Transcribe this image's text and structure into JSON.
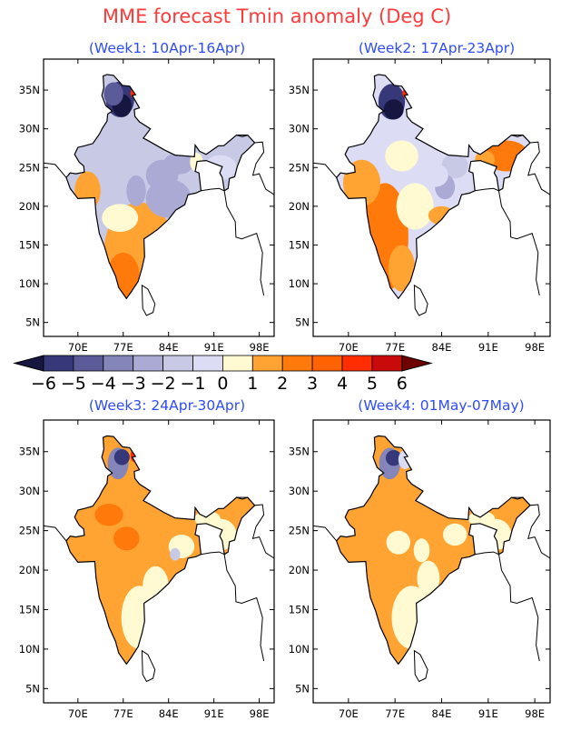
{
  "title": "MME forecast Tmin anomaly (Deg C)",
  "panels": [
    {
      "subtitle": "(Week1: 10Apr-16Apr)",
      "base_color": "#c8cae5"
    },
    {
      "subtitle": "(Week2: 17Apr-23Apr)",
      "base_color": "#dcdcf5"
    },
    {
      "subtitle": "(Week3: 24Apr-30Apr)",
      "base_color": "#ffa332"
    },
    {
      "subtitle": "(Week4: 01May-07May)",
      "base_color": "#ffa332"
    }
  ],
  "axes": {
    "lon_labels": [
      "70E",
      "77E",
      "84E",
      "91E",
      "98E"
    ],
    "lon_values": [
      70,
      77,
      84,
      91,
      98
    ],
    "lat_labels": [
      "5N",
      "10N",
      "15N",
      "20N",
      "25N",
      "30N",
      "35N"
    ],
    "lat_values": [
      5,
      10,
      15,
      20,
      25,
      30,
      35
    ],
    "lon_range": [
      64.7,
      100.3
    ],
    "lat_range": [
      3.2,
      39
    ]
  },
  "colorbar": {
    "labels": [
      "-6",
      "-5",
      "-4",
      "-3",
      "-2",
      "-1",
      "0",
      "1",
      "2",
      "3",
      "4",
      "5",
      "6"
    ],
    "colors": [
      "#161640",
      "#37387a",
      "#5a5b98",
      "#8485b9",
      "#aaaad5",
      "#c8cae5",
      "#dcdcf5",
      "#fffad2",
      "#ffa332",
      "#ff7a0a",
      "#ff6200",
      "#ff2d00",
      "#c80a0a",
      "#700000"
    ]
  }
}
